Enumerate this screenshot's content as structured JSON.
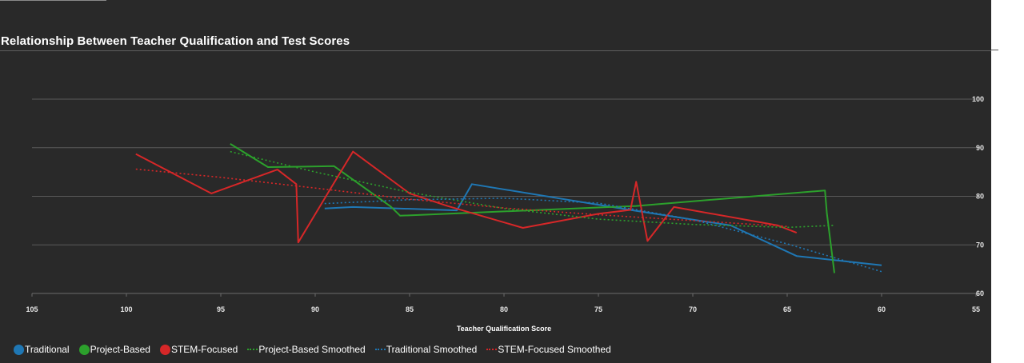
{
  "colors": {
    "background": "#292929",
    "traditional": "#1f77b4",
    "project_based": "#2ca02c",
    "stem_focused": "#d62728"
  },
  "chart_data": {
    "type": "line",
    "title": "Relationship Between Teacher Qualification and Test Scores",
    "xlabel": "Teacher Qualification Score",
    "ylabel": "",
    "xlim": [
      105,
      55
    ],
    "ylim": [
      60,
      100
    ],
    "x_ticks": [
      "105",
      "100",
      "95",
      "90",
      "85",
      "80",
      "75",
      "70",
      "65",
      "60",
      "55"
    ],
    "y_ticks": [
      "100",
      "90",
      "80",
      "70",
      "60"
    ],
    "y_axis_side": "right",
    "grid": true,
    "legend_position": "bottom",
    "series": [
      {
        "name": "Traditional",
        "style": "solid",
        "color": "#1f77b4",
        "x": [
          89.5,
          88,
          82.5,
          81.7,
          73.5,
          68,
          64.5,
          60
        ],
        "y": [
          77.5,
          77.8,
          77.1,
          82.5,
          77.3,
          74,
          67.7,
          65.8
        ]
      },
      {
        "name": "Project-Based",
        "style": "solid",
        "color": "#2ca02c",
        "x": [
          94.5,
          92.5,
          89,
          86,
          85.5,
          73,
          63,
          62.9,
          62.5
        ],
        "y": [
          90.8,
          86,
          86.2,
          77.9,
          76,
          78,
          81.2,
          76.5,
          64.2
        ]
      },
      {
        "name": "STEM-Focused",
        "style": "solid",
        "color": "#d62728",
        "x": [
          99.5,
          95.5,
          92,
          91,
          90.9,
          89.2,
          88,
          85,
          83,
          79,
          75,
          73.3,
          73,
          72.4,
          71,
          65.5,
          64.5
        ],
        "y": [
          88.7,
          80.6,
          85.5,
          82.5,
          70.5,
          81.5,
          89.2,
          80.6,
          78,
          73.5,
          76.4,
          77.2,
          83,
          70.8,
          77.8,
          74,
          72.5
        ]
      },
      {
        "name": "Project-Based Smoothed",
        "style": "dotted",
        "color": "#2ca02c",
        "x": [
          94.5,
          90,
          85,
          80,
          75,
          70,
          65,
          62.5
        ],
        "y": [
          89.2,
          85,
          80.8,
          77.5,
          75.3,
          74.2,
          73.6,
          74
        ]
      },
      {
        "name": "Traditional Smoothed",
        "style": "dotted",
        "color": "#1f77b4",
        "x": [
          89.5,
          85,
          80,
          75,
          70,
          65,
          60
        ],
        "y": [
          78.5,
          79.3,
          79.6,
          78.6,
          75.2,
          70.2,
          64.5
        ]
      },
      {
        "name": "STEM-Focused Smoothed",
        "style": "dotted",
        "color": "#d62728",
        "x": [
          99.5,
          95,
          90,
          85,
          80,
          75,
          70,
          65
        ],
        "y": [
          85.6,
          83.9,
          81.7,
          79.4,
          77.6,
          76.2,
          75,
          73.8
        ]
      }
    ]
  }
}
